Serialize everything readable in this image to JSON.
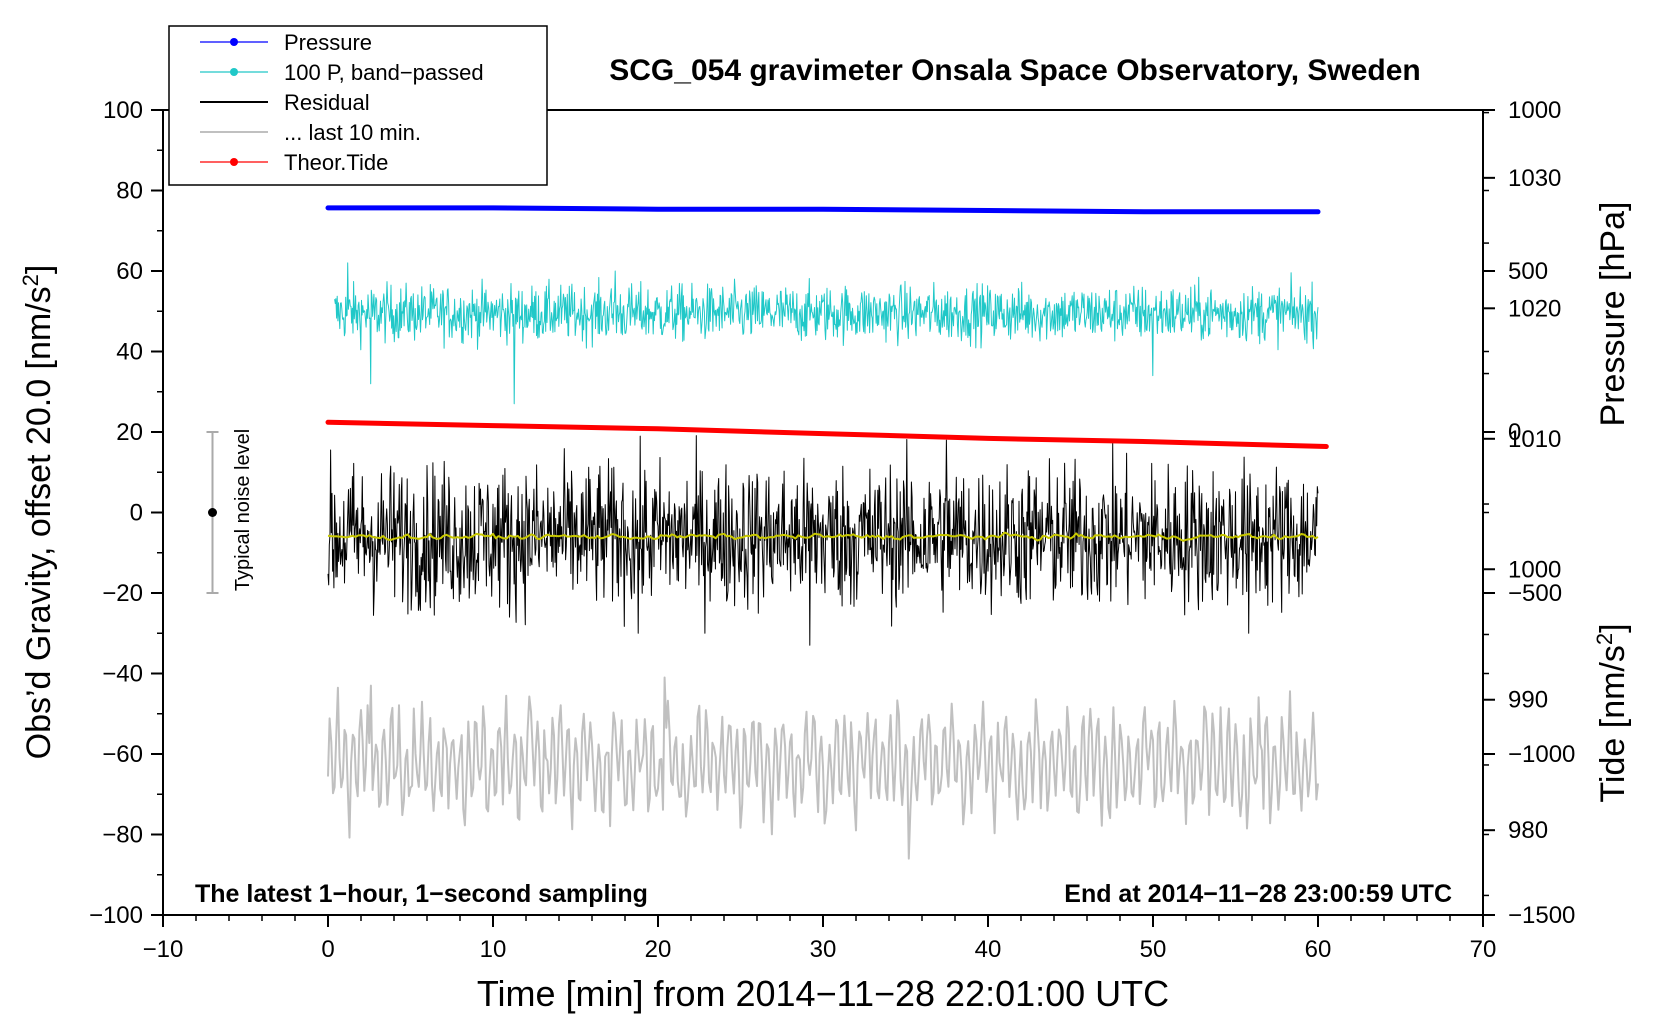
{
  "chart_data": {
    "type": "line",
    "title": "SCG_054 gravimeter Onsala Space Observatory, Sweden",
    "xlabel": "Time [min] from 2014−11−28 22:01:00 UTC",
    "ylabel_left": "Obs’d Gravity, offset 20.0 [nm/s²]",
    "ylabel_right_pressure": "Pressure [hPa]",
    "ylabel_right_tide": "Tide [nm/s²]",
    "xlim": [
      -10,
      70
    ],
    "ylim_left": [
      -100,
      100
    ],
    "pressure_axis_range": [
      973.5,
      1035.2
    ],
    "tide_axis_range": [
      -1500,
      1000
    ],
    "x_ticks": [
      "−10",
      "0",
      "10",
      "20",
      "30",
      "40",
      "50",
      "60",
      "70"
    ],
    "y_ticks_left": [
      "100",
      "80",
      "60",
      "40",
      "20",
      "0",
      "−20",
      "−40",
      "−60",
      "−80",
      "−100"
    ],
    "pressure_ticks": [
      "1030",
      "1020",
      "1010",
      "1000",
      "990",
      "980"
    ],
    "tide_ticks": [
      "1000",
      "500",
      "0",
      "−500",
      "−1000",
      "−1500"
    ],
    "legend": {
      "position": "top-left",
      "entries": [
        {
          "label": "Pressure",
          "color": "#0000ff",
          "marker": true
        },
        {
          "label": "100 P, band−passed",
          "color": "#20c8c8",
          "marker": true
        },
        {
          "label": "Residual",
          "color": "#000000",
          "marker": false
        },
        {
          "label": "... last 10 min.",
          "color": "#c0c0c0",
          "marker": false
        },
        {
          "label": "Theor.Tide",
          "color": "#ff0000",
          "marker": true
        }
      ]
    },
    "series": [
      {
        "name": "Pressure",
        "axis": "pressure",
        "color": "#0000ff",
        "style": "thick-line",
        "x": [
          0,
          10,
          20,
          30,
          40,
          50,
          60
        ],
        "y": [
          1027.7,
          1027.7,
          1027.6,
          1027.6,
          1027.5,
          1027.4,
          1027.4
        ]
      },
      {
        "name": "100 P, band−passed",
        "axis": "left",
        "color": "#20c8c8",
        "style": "noise",
        "x_range": [
          0.4,
          60
        ],
        "center": 49.5,
        "amplitude": 3.5,
        "spikes": [
          {
            "x": 1.2,
            "y": 62
          },
          {
            "x": 2.6,
            "y": 32
          },
          {
            "x": 11.3,
            "y": 27
          },
          {
            "x": 17.4,
            "y": 60
          },
          {
            "x": 50.0,
            "y": 63
          },
          {
            "x": 50.0,
            "y": 34
          }
        ]
      },
      {
        "name": "Residual",
        "axis": "left",
        "color": "#000000",
        "style": "noise",
        "x_range": [
          0,
          60
        ],
        "center": -6,
        "amplitude": 9,
        "spikes": [
          {
            "x": 37.5,
            "y": 18
          },
          {
            "x": 29.2,
            "y": -33
          },
          {
            "x": 18.8,
            "y": -30
          },
          {
            "x": 55.8,
            "y": -30
          },
          {
            "x": 11.0,
            "y": -26
          }
        ]
      },
      {
        "name": "Smoothed residual",
        "axis": "left",
        "color": "#c8c800",
        "style": "noise-smooth",
        "x_range": [
          0,
          60
        ],
        "center": -6,
        "amplitude": 0.7
      },
      {
        "name": "... last 10 min.",
        "axis": "left",
        "color": "#c0c0c0",
        "style": "oscillation",
        "x_range": [
          0,
          60
        ],
        "center": -62,
        "amplitude": 12,
        "spikes": [
          {
            "x": 2.6,
            "y": -43
          },
          {
            "x": 20.4,
            "y": -41
          },
          {
            "x": 35.2,
            "y": -86
          }
        ]
      },
      {
        "name": "Theor.Tide",
        "axis": "tide",
        "color": "#ff0000",
        "style": "thick-line",
        "x": [
          0,
          10,
          20,
          30,
          40,
          50,
          60.5
        ],
        "y": [
          30,
          20,
          10,
          -5,
          -20,
          -30,
          -45
        ]
      }
    ],
    "noise_bar": {
      "label": "Typical noise level",
      "x": -7,
      "y_low": -20,
      "y_high": 20,
      "center": 0
    },
    "annotations": {
      "bottom_left": "The latest 1−hour, 1−second sampling",
      "bottom_right": "End at 2014−11−28 23:00:59 UTC"
    }
  }
}
